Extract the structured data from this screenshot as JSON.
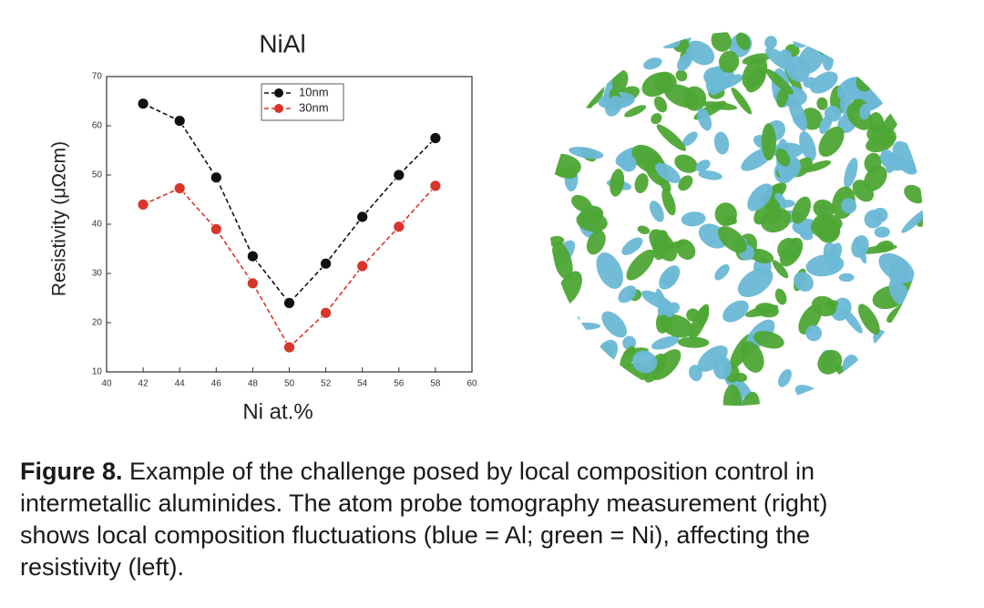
{
  "chart_data": {
    "type": "line",
    "title": "NiAl",
    "xlabel": "Ni at.%",
    "ylabel": "Resistivity  (μΩcm)",
    "x": [
      42,
      44,
      46,
      48,
      50,
      52,
      54,
      56,
      58
    ],
    "series": [
      {
        "name": "10nm",
        "color": "#111111",
        "values": [
          64.5,
          61,
          49.5,
          33.5,
          24,
          32,
          41.5,
          50,
          57.5
        ]
      },
      {
        "name": "30nm",
        "color": "#d9352a",
        "values": [
          44,
          47.3,
          39,
          28,
          15,
          22,
          31.5,
          39.5,
          47.8
        ]
      }
    ],
    "xlim": [
      40,
      60
    ],
    "xticks": [
      40,
      42,
      44,
      46,
      48,
      50,
      52,
      54,
      56,
      58,
      60
    ],
    "ylim": [
      10,
      70
    ],
    "yticks": [
      10,
      20,
      30,
      40,
      50,
      60,
      70
    ],
    "grid": false,
    "legend": "upper center"
  },
  "caption": {
    "label": "Figure 8.",
    "lines": [
      "Example of the challenge posed by local composition control in",
      "intermetallic aluminides. The atom probe tomography measurement (right)",
      "shows local composition fluctuations (blue = Al; green = Ni), affecting the",
      "resistivity (left)."
    ]
  }
}
